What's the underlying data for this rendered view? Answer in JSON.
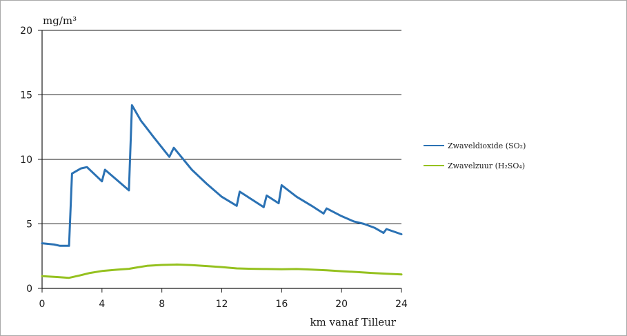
{
  "chart_data": {
    "type": "line",
    "title": "",
    "ylabel": "mg/m³",
    "xlabel": "km vanaf Tilleur",
    "xlim": [
      0,
      24
    ],
    "ylim": [
      0,
      20
    ],
    "x_ticks": [
      0,
      4,
      8,
      12,
      16,
      20,
      24
    ],
    "y_ticks": [
      0,
      5,
      10,
      15,
      20
    ],
    "grid": "horizontal",
    "legend_position": "right",
    "series": [
      {
        "name": "Zwaveldioxide (SO₂)",
        "color": "#2b72b4",
        "points": [
          [
            0,
            3.5
          ],
          [
            0.8,
            3.4
          ],
          [
            1.2,
            3.3
          ],
          [
            1.8,
            3.3
          ],
          [
            2.0,
            8.9
          ],
          [
            2.6,
            9.3
          ],
          [
            3.0,
            9.4
          ],
          [
            4.0,
            8.3
          ],
          [
            4.2,
            9.2
          ],
          [
            5.0,
            8.4
          ],
          [
            5.8,
            7.6
          ],
          [
            6.0,
            14.2
          ],
          [
            6.6,
            13.0
          ],
          [
            7.0,
            12.4
          ],
          [
            7.4,
            11.8
          ],
          [
            8.5,
            10.2
          ],
          [
            8.8,
            10.9
          ],
          [
            10.0,
            9.2
          ],
          [
            11.0,
            8.1
          ],
          [
            12.0,
            7.1
          ],
          [
            13.0,
            6.4
          ],
          [
            13.2,
            7.5
          ],
          [
            14.8,
            6.3
          ],
          [
            15.0,
            7.2
          ],
          [
            15.8,
            6.6
          ],
          [
            16.0,
            8.0
          ],
          [
            17.0,
            7.1
          ],
          [
            18.0,
            6.4
          ],
          [
            18.8,
            5.8
          ],
          [
            19.0,
            6.2
          ],
          [
            20.0,
            5.6
          ],
          [
            20.8,
            5.2
          ],
          [
            21.5,
            5.0
          ],
          [
            22.2,
            4.7
          ],
          [
            22.8,
            4.3
          ],
          [
            23.0,
            4.6
          ],
          [
            24.0,
            4.2
          ]
        ]
      },
      {
        "name": "Zwavelzuur (H₂SO₄)",
        "color": "#95c11f",
        "points": [
          [
            0,
            0.95
          ],
          [
            1,
            0.88
          ],
          [
            1.8,
            0.82
          ],
          [
            2.5,
            1.0
          ],
          [
            3.2,
            1.2
          ],
          [
            4.0,
            1.35
          ],
          [
            5.0,
            1.45
          ],
          [
            5.8,
            1.52
          ],
          [
            6.2,
            1.6
          ],
          [
            7.0,
            1.75
          ],
          [
            8.0,
            1.82
          ],
          [
            9.0,
            1.85
          ],
          [
            10.0,
            1.8
          ],
          [
            11.0,
            1.73
          ],
          [
            12.0,
            1.65
          ],
          [
            13.0,
            1.55
          ],
          [
            14.0,
            1.52
          ],
          [
            15.0,
            1.5
          ],
          [
            16.0,
            1.48
          ],
          [
            17.0,
            1.5
          ],
          [
            18.0,
            1.46
          ],
          [
            19.0,
            1.4
          ],
          [
            20.0,
            1.33
          ],
          [
            21.0,
            1.27
          ],
          [
            22.0,
            1.2
          ],
          [
            23.0,
            1.14
          ],
          [
            24.0,
            1.08
          ]
        ]
      }
    ]
  }
}
